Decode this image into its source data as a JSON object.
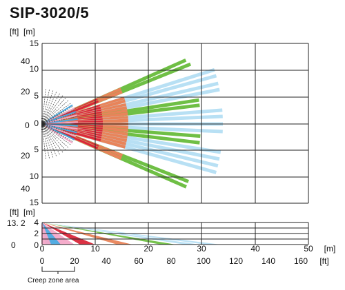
{
  "title": "SIP-3020/5",
  "top_units": {
    "ft": "[ft]",
    "m": "[m]"
  },
  "top_m_ticks": [
    "15",
    "10",
    "5",
    "0",
    "5",
    "10",
    "15"
  ],
  "top_ft_ticks": [
    "40",
    "20",
    "0",
    "20",
    "40"
  ],
  "side_units": {
    "ft": "[ft]",
    "m": "[m]"
  },
  "side_m_ticks": [
    "4",
    "2",
    "0"
  ],
  "side_ft_ticks": [
    "13. 2",
    "0"
  ],
  "x_m_ticks": [
    "0",
    "10",
    "20",
    "30",
    "40",
    "50"
  ],
  "x_m_unit": "[m]",
  "x_ft_ticks": [
    "0",
    "20",
    "40",
    "60",
    "80",
    "100",
    "120",
    "140",
    "160"
  ],
  "x_ft_unit": "[ft]",
  "creep_label": "Creep zone area",
  "colors": {
    "green": "#6fbf45",
    "orange": "#e8845a",
    "red": "#d9273a",
    "lightblue": "#b8e0f4",
    "pink": "#f4a8c8",
    "blue": "#4aa8e0",
    "grid": "#222222"
  }
}
